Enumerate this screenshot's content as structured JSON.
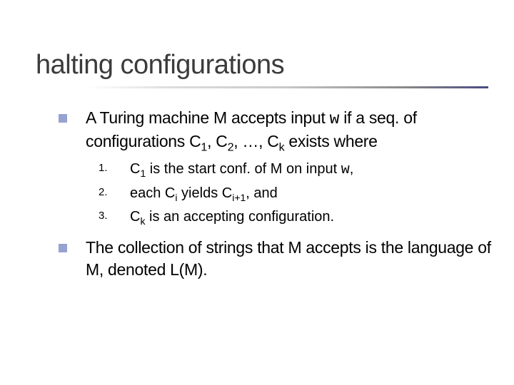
{
  "title": "halting configurations",
  "title_fontsize": 38,
  "title_color": "#3b3b3b",
  "underline_gradient_stops": [
    "#ffffff",
    "#dddddd",
    "#c9c9c9",
    "#888888",
    "#4a4a84"
  ],
  "bullet_icon_color": "#96a2d0",
  "body_fontsize_primary": 23,
  "body_fontsize_secondary": 20,
  "num_label_fontsize": 15,
  "bullets": [
    {
      "type": "square",
      "parts": [
        {
          "t": "A Turing machine M accepts input "
        },
        {
          "t": "w",
          "tt": true
        },
        {
          "t": " if a seq. of configurations C"
        },
        {
          "t": "1",
          "sub": true
        },
        {
          "t": ", C"
        },
        {
          "t": "2",
          "sub": true
        },
        {
          "t": ", …, C"
        },
        {
          "t": "k",
          "sub": true
        },
        {
          "t": " exists where"
        }
      ]
    }
  ],
  "numbered": [
    {
      "num": "1.",
      "parts": [
        {
          "t": "C"
        },
        {
          "t": "1",
          "sub": true
        },
        {
          "t": " is the start conf. of M on input "
        },
        {
          "t": "w",
          "tt": true
        },
        {
          "t": ","
        }
      ]
    },
    {
      "num": "2.",
      "parts": [
        {
          "t": "each C"
        },
        {
          "t": "i",
          "sub": true
        },
        {
          "t": " yields C"
        },
        {
          "t": "i+1",
          "sub": true
        },
        {
          "t": ", and"
        }
      ]
    },
    {
      "num": "3.",
      "parts": [
        {
          "t": "C"
        },
        {
          "t": "k",
          "sub": true
        },
        {
          "t": " is an accepting configuration."
        }
      ]
    }
  ],
  "bullets2": [
    {
      "type": "square",
      "parts": [
        {
          "t": "The collection of strings that M accepts is the language of M, denoted L(M)."
        }
      ]
    }
  ]
}
